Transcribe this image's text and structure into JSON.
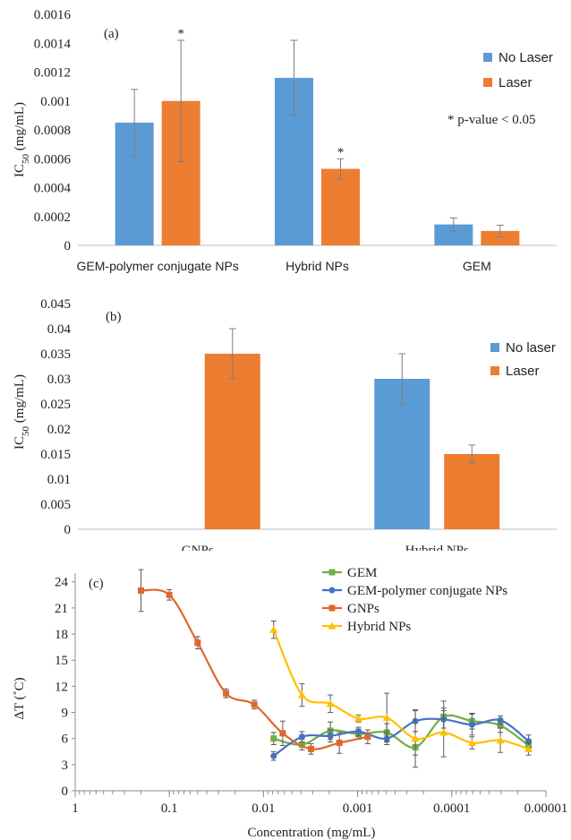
{
  "chart_data": [
    {
      "type": "bar",
      "panel_label": "(a)",
      "ylabel_main": "IC",
      "ylabel_sub": "50",
      "ylabel_unit": " (mg/mL)",
      "ylim": [
        0,
        0.0016
      ],
      "yticks": [
        "0",
        "0.0002",
        "0.0004",
        "0.0006",
        "0.0008",
        "0.001",
        "0.0012",
        "0.0014",
        "0.0016"
      ],
      "ytick_values": [
        0,
        0.0002,
        0.0004,
        0.0006,
        0.0008,
        0.001,
        0.0012,
        0.0014,
        0.0016
      ],
      "categories": [
        "GEM-polymer conjugate NPs",
        "Hybrid NPs",
        "GEM"
      ],
      "series": [
        {
          "name": "No Laser",
          "color": "#5b9bd5",
          "values": [
            0.00085,
            0.00116,
            0.000145
          ],
          "errors": [
            0.00023,
            0.00026,
            4.5e-05
          ],
          "stars": [
            "",
            "",
            ""
          ]
        },
        {
          "name": "Laser",
          "color": "#ed7d31",
          "values": [
            0.001,
            0.00053,
            0.0001
          ],
          "errors": [
            0.00042,
            7e-05,
            4e-05
          ],
          "stars": [
            "*",
            "*",
            ""
          ]
        }
      ],
      "annotation": "* p-value < 0.05",
      "legend_position": "top-right",
      "grid": false
    },
    {
      "type": "bar",
      "panel_label": "(b)",
      "ylabel_main": "IC",
      "ylabel_sub": "50",
      "ylabel_unit": " (mg/mL)",
      "ylim": [
        0,
        0.045
      ],
      "yticks": [
        "0",
        "0.005",
        "0.01",
        "0.015",
        "0.02",
        "0.025",
        "0.03",
        "0.035",
        "0.04",
        "0.045"
      ],
      "ytick_values": [
        0,
        0.005,
        0.01,
        0.015,
        0.02,
        0.025,
        0.03,
        0.035,
        0.04,
        0.045
      ],
      "categories": [
        "GNPs",
        "Hybrid NPs"
      ],
      "series": [
        {
          "name": "No laser",
          "color": "#5b9bd5",
          "values": [
            null,
            0.03
          ],
          "errors": [
            null,
            0.005
          ]
        },
        {
          "name": "Laser",
          "color": "#ed7d31",
          "values": [
            0.035,
            0.015
          ],
          "errors": [
            0.005,
            0.0018
          ]
        }
      ],
      "legend_position": "top-right",
      "grid": false
    },
    {
      "type": "line",
      "panel_label": "(c)",
      "ylabel": "ΔT (˚C)",
      "xlabel": "Concentration (mg/mL)",
      "x_scale": "log",
      "x_reversed": true,
      "xlim": [
        1,
        1e-05
      ],
      "xticks": [
        "1",
        "0.1",
        "0.01",
        "0.001",
        "0.0001",
        "0.00001"
      ],
      "xtick_values": [
        1,
        0.1,
        0.01,
        0.001,
        0.0001,
        1e-05
      ],
      "ylim": [
        0,
        25
      ],
      "yticks": [
        "0",
        "3",
        "6",
        "9",
        "12",
        "15",
        "18",
        "21",
        "24"
      ],
      "ytick_values": [
        0,
        3,
        6,
        9,
        12,
        15,
        18,
        21,
        24
      ],
      "series": [
        {
          "name": "GEM",
          "color": "#70ad47",
          "marker": "square",
          "x": [
            0.0078,
            0.0039,
            0.00195,
            0.00098,
            0.00049,
            0.000244,
            0.000122,
            6.1e-05,
            3.05e-05,
            1.53e-05
          ],
          "y": [
            6.0,
            5.3,
            6.9,
            6.5,
            6.7,
            5.0,
            8.5,
            8.0,
            7.5,
            5.2
          ],
          "err": [
            0.7,
            0.6,
            1.0,
            0.6,
            1.0,
            0.9,
            1.8,
            0.9,
            0.8,
            0.6
          ]
        },
        {
          "name": "GEM-polymer conjugate NPs",
          "color": "#4472c4",
          "marker": "circle",
          "x": [
            0.0078,
            0.0039,
            0.00195,
            0.00098,
            0.00049,
            0.000244,
            0.000122,
            6.1e-05,
            3.05e-05,
            1.53e-05
          ],
          "y": [
            4.0,
            6.2,
            6.3,
            6.8,
            6.0,
            8.0,
            8.2,
            7.6,
            8.1,
            5.7
          ],
          "err": [
            0.5,
            0.6,
            0.7,
            0.5,
            0.7,
            1.2,
            1.0,
            1.2,
            0.5,
            0.7
          ]
        },
        {
          "name": "GNPs",
          "color": "#e0672b",
          "marker": "square",
          "x": [
            0.2,
            0.1,
            0.05,
            0.025,
            0.0125,
            0.00625,
            0.003125,
            0.0015625,
            0.00078125
          ],
          "y": [
            23.0,
            22.5,
            17.0,
            11.2,
            9.9,
            6.6,
            4.8,
            5.5,
            6.2
          ],
          "err": [
            2.4,
            0.6,
            0.7,
            0.5,
            0.5,
            1.4,
            0.6,
            1.2,
            0.8
          ]
        },
        {
          "name": "Hybrid NPs",
          "color": "#ffc000",
          "marker": "triangle",
          "x": [
            0.0078,
            0.0039,
            0.00195,
            0.00098,
            0.00049,
            0.000244,
            0.000122,
            6.1e-05,
            3.05e-05,
            1.53e-05
          ],
          "y": [
            18.5,
            11.0,
            10.0,
            8.3,
            8.4,
            6.0,
            6.7,
            5.5,
            5.8,
            4.8
          ],
          "err": [
            1.0,
            1.3,
            1.0,
            0.4,
            2.8,
            3.3,
            2.8,
            0.7,
            1.4,
            0.7
          ]
        }
      ],
      "legend_position": "top-right",
      "grid": false
    }
  ]
}
